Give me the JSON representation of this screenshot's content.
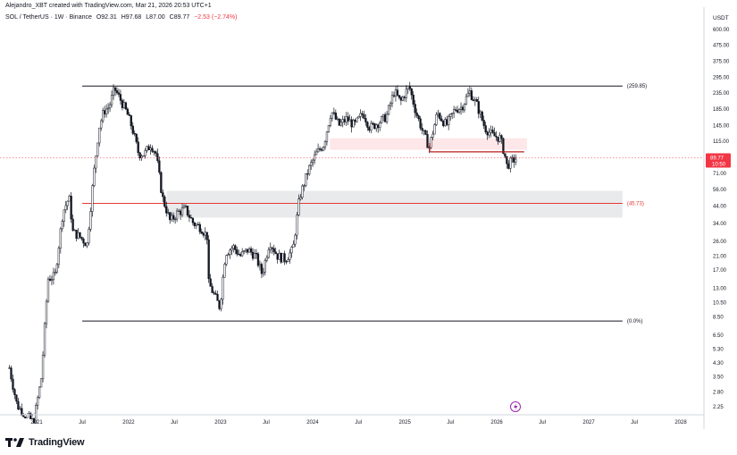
{
  "header": {
    "author_line": "Alejandro_XBT created with TradingView.com, Mar 21, 2026 20:53 UTC+1"
  },
  "symbol_bar": {
    "symbol": "SOL / TetherUS · 1W · Binance",
    "open": "O92.31",
    "high": "H97.68",
    "low": "L87.00",
    "close": "C89.77",
    "change": "−2.53 (−2.74%)",
    "change_color": "#f23645"
  },
  "footer": {
    "brand": "TradingView"
  },
  "chart_data": {
    "type": "candlestick",
    "price_axis": {
      "title": "USDT",
      "scale": "log",
      "range": [
        2.0,
        620.0
      ],
      "ticks": [
        "600.00",
        "475.00",
        "375.00",
        "295.00",
        "235.00",
        "185.00",
        "145.00",
        "115.00",
        "71.00",
        "56.00",
        "44.00",
        "34.00",
        "26.00",
        "21.00",
        "17.00",
        "13.00",
        "10.50",
        "8.50",
        "6.50",
        "5.30",
        "4.30",
        "3.50",
        "2.80",
        "2.25"
      ],
      "last_price_label": "89.77",
      "countdown_label": "10:50",
      "last_price_color": "#f23645"
    },
    "time_axis": {
      "range": [
        "2020-09-15",
        "2028-06-01"
      ],
      "ticks": [
        {
          "label": "2021",
          "date": "2021-01-01"
        },
        {
          "label": "Jul",
          "date": "2021-07-01"
        },
        {
          "label": "2022",
          "date": "2022-01-01"
        },
        {
          "label": "Jul",
          "date": "2022-07-01"
        },
        {
          "label": "2023",
          "date": "2023-01-01"
        },
        {
          "label": "Jul",
          "date": "2023-07-01"
        },
        {
          "label": "2024",
          "date": "2024-01-01"
        },
        {
          "label": "Jul",
          "date": "2024-07-01"
        },
        {
          "label": "2025",
          "date": "2025-01-01"
        },
        {
          "label": "Jul",
          "date": "2025-07-01"
        },
        {
          "label": "2026",
          "date": "2026-01-01"
        },
        {
          "label": "Jul",
          "date": "2026-07-01"
        },
        {
          "label": "2027",
          "date": "2027-01-01"
        },
        {
          "label": "Jul",
          "date": "2027-07-01"
        },
        {
          "label": "2028",
          "date": "2028-01-01"
        }
      ]
    },
    "price_path": [
      [
        "2020-09-15",
        4.0
      ],
      [
        "2020-10-15",
        2.3
      ],
      [
        "2020-11-15",
        2.0
      ],
      [
        "2020-12-20",
        1.8
      ],
      [
        "2021-01-20",
        3.5
      ],
      [
        "2021-02-15",
        15.0
      ],
      [
        "2021-03-15",
        15.5
      ],
      [
        "2021-04-15",
        40.0
      ],
      [
        "2021-05-10",
        50.0
      ],
      [
        "2021-05-25",
        30.0
      ],
      [
        "2021-06-20",
        28.0
      ],
      [
        "2021-07-20",
        25.0
      ],
      [
        "2021-08-15",
        70.0
      ],
      [
        "2021-09-05",
        140.0
      ],
      [
        "2021-09-25",
        180.0
      ],
      [
        "2021-10-15",
        190.0
      ],
      [
        "2021-11-06",
        250.0
      ],
      [
        "2021-12-01",
        210.0
      ],
      [
        "2021-12-25",
        175.0
      ],
      [
        "2022-01-15",
        140.0
      ],
      [
        "2022-02-10",
        95.0
      ],
      [
        "2022-03-05",
        95.0
      ],
      [
        "2022-03-30",
        110.0
      ],
      [
        "2022-04-20",
        95.0
      ],
      [
        "2022-05-15",
        50.0
      ],
      [
        "2022-06-15",
        35.0
      ],
      [
        "2022-07-15",
        40.0
      ],
      [
        "2022-08-15",
        42.0
      ],
      [
        "2022-09-15",
        34.0
      ],
      [
        "2022-10-15",
        32.0
      ],
      [
        "2022-11-08",
        28.0
      ],
      [
        "2022-11-15",
        14.0
      ],
      [
        "2022-12-15",
        11.0
      ],
      [
        "2022-12-29",
        9.8
      ],
      [
        "2023-01-20",
        22.0
      ],
      [
        "2023-02-20",
        24.0
      ],
      [
        "2023-03-20",
        21.0
      ],
      [
        "2023-04-20",
        23.0
      ],
      [
        "2023-05-20",
        21.0
      ],
      [
        "2023-06-15",
        16.0
      ],
      [
        "2023-07-15",
        26.0
      ],
      [
        "2023-08-15",
        21.0
      ],
      [
        "2023-09-15",
        20.0
      ],
      [
        "2023-10-15",
        23.0
      ],
      [
        "2023-11-10",
        50.0
      ],
      [
        "2023-12-15",
        75.0
      ],
      [
        "2024-01-15",
        95.0
      ],
      [
        "2024-02-15",
        110.0
      ],
      [
        "2024-03-15",
        180.0
      ],
      [
        "2024-04-15",
        145.0
      ],
      [
        "2024-05-15",
        160.0
      ],
      [
        "2024-06-15",
        145.0
      ],
      [
        "2024-07-20",
        175.0
      ],
      [
        "2024-08-15",
        140.0
      ],
      [
        "2024-09-15",
        150.0
      ],
      [
        "2024-10-20",
        165.0
      ],
      [
        "2024-11-20",
        240.0
      ],
      [
        "2024-12-15",
        205.0
      ],
      [
        "2025-01-18",
        260.0
      ],
      [
        "2025-02-15",
        175.0
      ],
      [
        "2025-03-15",
        130.0
      ],
      [
        "2025-04-08",
        105.0
      ],
      [
        "2025-05-10",
        175.0
      ],
      [
        "2025-06-15",
        145.0
      ],
      [
        "2025-07-20",
        185.0
      ],
      [
        "2025-08-15",
        190.0
      ],
      [
        "2025-09-15",
        240.0
      ],
      [
        "2025-10-15",
        195.0
      ],
      [
        "2025-11-15",
        140.0
      ],
      [
        "2025-12-15",
        125.0
      ],
      [
        "2026-01-15",
        120.0
      ],
      [
        "2026-02-01",
        95.0
      ],
      [
        "2026-02-10",
        80.0
      ],
      [
        "2026-03-01",
        85.0
      ],
      [
        "2026-03-21",
        89.77
      ]
    ],
    "levels": [
      {
        "label": "(259.85)",
        "price": 259.85,
        "from": "2021-07-01",
        "to": "2027-05-15",
        "color": "#131722"
      },
      {
        "label": "(45.73)",
        "price": 45.73,
        "from": "2021-07-01",
        "to": "2027-05-15",
        "color": "#e53935"
      },
      {
        "label": "(0.0%)",
        "price": 8.0,
        "from": "2021-07-01",
        "to": "2027-05-15",
        "color": "#131722"
      }
    ],
    "zones": [
      {
        "low": 37.0,
        "high": 55.0,
        "from": "2022-06-01",
        "to": "2027-05-15",
        "color": "#787b86",
        "opacity": 0.16
      },
      {
        "low": 101.0,
        "high": 120.0,
        "from": "2024-03-10",
        "to": "2026-05-01",
        "color": "#f23645",
        "opacity": 0.12
      }
    ],
    "support_line": {
      "price": 98.0,
      "from": "2025-04-10",
      "to": "2026-04-20",
      "color": "#b71c1c"
    },
    "current_price_line": {
      "price": 89.77,
      "color": "#f23645"
    }
  }
}
